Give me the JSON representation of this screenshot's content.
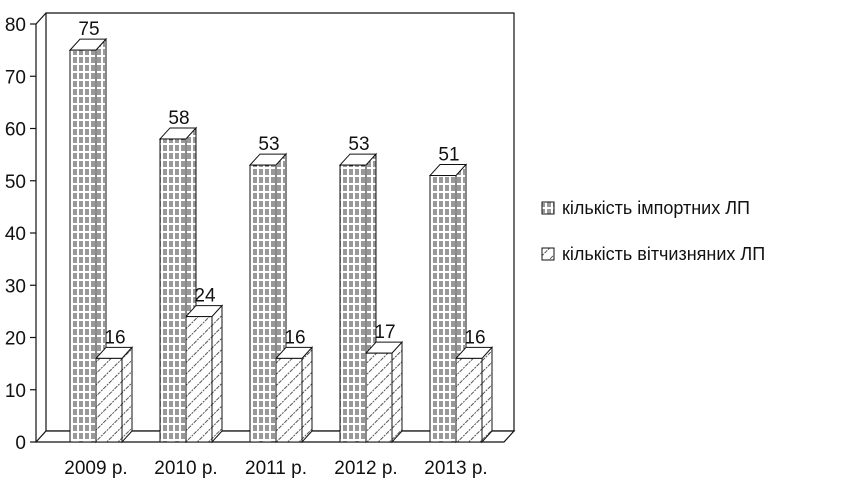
{
  "chart_data": {
    "type": "bar",
    "categories": [
      "2009 р.",
      "2010 р.",
      "2011 р.",
      "2012 р.",
      "2013 р."
    ],
    "series": [
      {
        "name": "кількість імпортних ЛП",
        "values": [
          75,
          58,
          53,
          53,
          51
        ]
      },
      {
        "name": "кількість вітчизняних ЛП",
        "values": [
          16,
          24,
          16,
          17,
          16
        ]
      }
    ],
    "ylim": [
      0,
      80
    ],
    "yticks": [
      0,
      10,
      20,
      30,
      40,
      50,
      60,
      70,
      80
    ],
    "ytick_labels": [
      "0",
      "10",
      "20",
      "30",
      "40",
      "50",
      "60",
      "70",
      "80"
    ],
    "title": "",
    "xlabel": "",
    "ylabel": "",
    "legend_position": "right",
    "style": "3d",
    "grid": false
  }
}
